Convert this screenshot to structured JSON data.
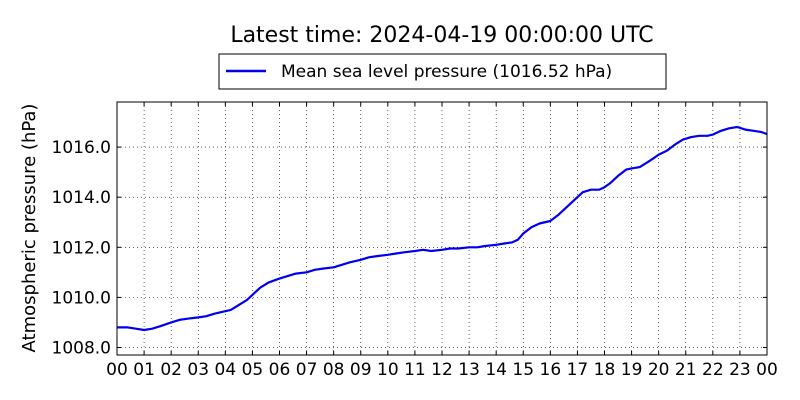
{
  "chart_data": {
    "type": "line",
    "title": "Latest time: 2024-04-19 00:00:00 UTC",
    "xlabel": "",
    "ylabel": "Atmospheric pressure (hPa)",
    "x_tick_labels": [
      "00",
      "01",
      "02",
      "03",
      "04",
      "05",
      "06",
      "07",
      "08",
      "09",
      "10",
      "11",
      "12",
      "13",
      "14",
      "15",
      "16",
      "17",
      "18",
      "19",
      "20",
      "21",
      "22",
      "23",
      "00"
    ],
    "y_tick_labels": [
      "1008.0",
      "1010.0",
      "1012.0",
      "1014.0",
      "1016.0"
    ],
    "y_ticks": [
      1008,
      1010,
      1012,
      1014,
      1016
    ],
    "xlim": [
      0,
      24
    ],
    "ylim": [
      1007.7,
      1017.8
    ],
    "grid": true,
    "legend_position": "top-center",
    "series": [
      {
        "name": "Mean sea level pressure (1016.52 hPa)",
        "color": "#0000ee",
        "x": [
          0,
          0.4,
          0.7,
          1.0,
          1.3,
          1.6,
          2.0,
          2.3,
          2.6,
          3.0,
          3.3,
          3.6,
          4.0,
          4.2,
          4.5,
          4.8,
          5.0,
          5.3,
          5.6,
          6.0,
          6.3,
          6.6,
          7.0,
          7.3,
          7.6,
          8.0,
          8.3,
          8.6,
          9.0,
          9.3,
          9.6,
          10.0,
          10.3,
          10.6,
          11.0,
          11.3,
          11.6,
          12.0,
          12.3,
          12.6,
          13.0,
          13.3,
          13.6,
          14.0,
          14.3,
          14.6,
          14.8,
          15.0,
          15.3,
          15.6,
          16.0,
          16.3,
          16.6,
          16.9,
          17.2,
          17.5,
          17.8,
          18.0,
          18.2,
          18.5,
          18.8,
          19.0,
          19.3,
          19.6,
          19.8,
          20.0,
          20.3,
          20.6,
          20.9,
          21.2,
          21.5,
          21.8,
          22.0,
          22.3,
          22.6,
          22.9,
          23.2,
          23.5,
          23.8,
          24.0
        ],
        "y": [
          1008.8,
          1008.8,
          1008.75,
          1008.7,
          1008.75,
          1008.85,
          1009.0,
          1009.1,
          1009.15,
          1009.2,
          1009.25,
          1009.35,
          1009.45,
          1009.5,
          1009.7,
          1009.9,
          1010.1,
          1010.4,
          1010.6,
          1010.75,
          1010.85,
          1010.95,
          1011.0,
          1011.1,
          1011.15,
          1011.2,
          1011.3,
          1011.4,
          1011.5,
          1011.6,
          1011.65,
          1011.7,
          1011.75,
          1011.8,
          1011.85,
          1011.9,
          1011.85,
          1011.9,
          1011.95,
          1011.95,
          1012.0,
          1012.0,
          1012.05,
          1012.1,
          1012.15,
          1012.2,
          1012.3,
          1012.55,
          1012.8,
          1012.95,
          1013.05,
          1013.3,
          1013.6,
          1013.9,
          1014.2,
          1014.3,
          1014.3,
          1014.4,
          1014.55,
          1014.85,
          1015.1,
          1015.15,
          1015.2,
          1015.4,
          1015.55,
          1015.7,
          1015.85,
          1016.1,
          1016.3,
          1016.4,
          1016.45,
          1016.45,
          1016.5,
          1016.65,
          1016.75,
          1016.8,
          1016.7,
          1016.65,
          1016.6,
          1016.52
        ]
      }
    ]
  }
}
